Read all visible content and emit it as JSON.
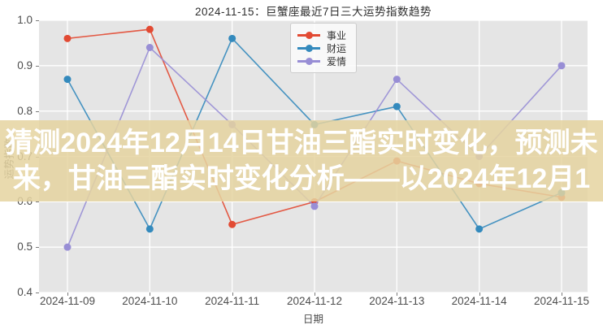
{
  "figure": {
    "title": "2024-11-15：巨蟹座最近7日三大运势指数趋势"
  },
  "axes": {
    "xlabel": "日期",
    "ylabel": "运势指数"
  },
  "overlay": {
    "line1": "猜测2024年12月14日甘油三酯实时变化，预测未",
    "line2": "来，甘油三酯实时变化分析——以2024年12月1",
    "bg_color": "rgba(229,211,160,0.85)",
    "text_color": "#ffffff"
  },
  "chart_data": {
    "type": "line",
    "title": "2024-11-15：巨蟹座最近7日三大运势指数趋势",
    "xlabel": "日期",
    "ylabel": "运势指数",
    "categories": [
      "2024-11-09",
      "2024-11-10",
      "2024-11-11",
      "2024-11-12",
      "2024-11-13",
      "2024-11-14",
      "2024-11-15"
    ],
    "series": [
      {
        "name": "事业",
        "color": "#E24A33",
        "values": [
          0.96,
          0.98,
          0.55,
          0.6,
          0.69,
          0.64,
          0.61
        ]
      },
      {
        "name": "财运",
        "color": "#348ABD",
        "values": [
          0.87,
          0.54,
          0.96,
          0.77,
          0.81,
          0.54,
          0.62
        ]
      },
      {
        "name": "爱情",
        "color": "#988ED5",
        "values": [
          0.5,
          0.94,
          0.77,
          0.59,
          0.87,
          0.7,
          0.9
        ]
      }
    ],
    "ylim": [
      0.4,
      1.0
    ],
    "yticks": [
      0.4,
      0.5,
      0.6,
      0.7,
      0.8,
      0.9,
      1.0
    ],
    "grid": true,
    "grid_color": "#ffffff",
    "plot_bg": "#e5e5e5",
    "marker": "circle",
    "legend_position": "upper center"
  }
}
